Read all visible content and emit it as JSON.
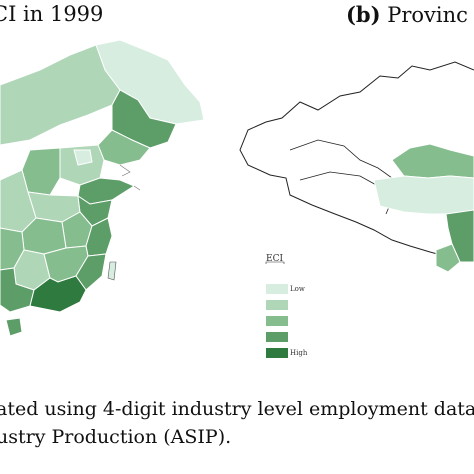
{
  "titles": {
    "panel_a": "CI in 1999",
    "panel_b_letter": "(b)",
    "panel_b_rest": "Provinc"
  },
  "legend": {
    "title": "ECI",
    "items": [
      {
        "label": "Low",
        "color": "#d6ede0"
      },
      {
        "label": "",
        "color": "#afd6b6"
      },
      {
        "label": "",
        "color": "#86bd8e"
      },
      {
        "label": "",
        "color": "#5c9d68"
      },
      {
        "label": "High",
        "color": "#2f7a3f"
      }
    ]
  },
  "caption": {
    "line1": "ated using 4-digit industry level employment data",
    "line2": "ustry Production (ASIP)."
  },
  "colors": {
    "low": "#d6ede0",
    "mid_low": "#afd6b6",
    "mid": "#86bd8e",
    "mid_high": "#5c9d68",
    "high": "#2f7a3f",
    "border": "#ffffff"
  }
}
